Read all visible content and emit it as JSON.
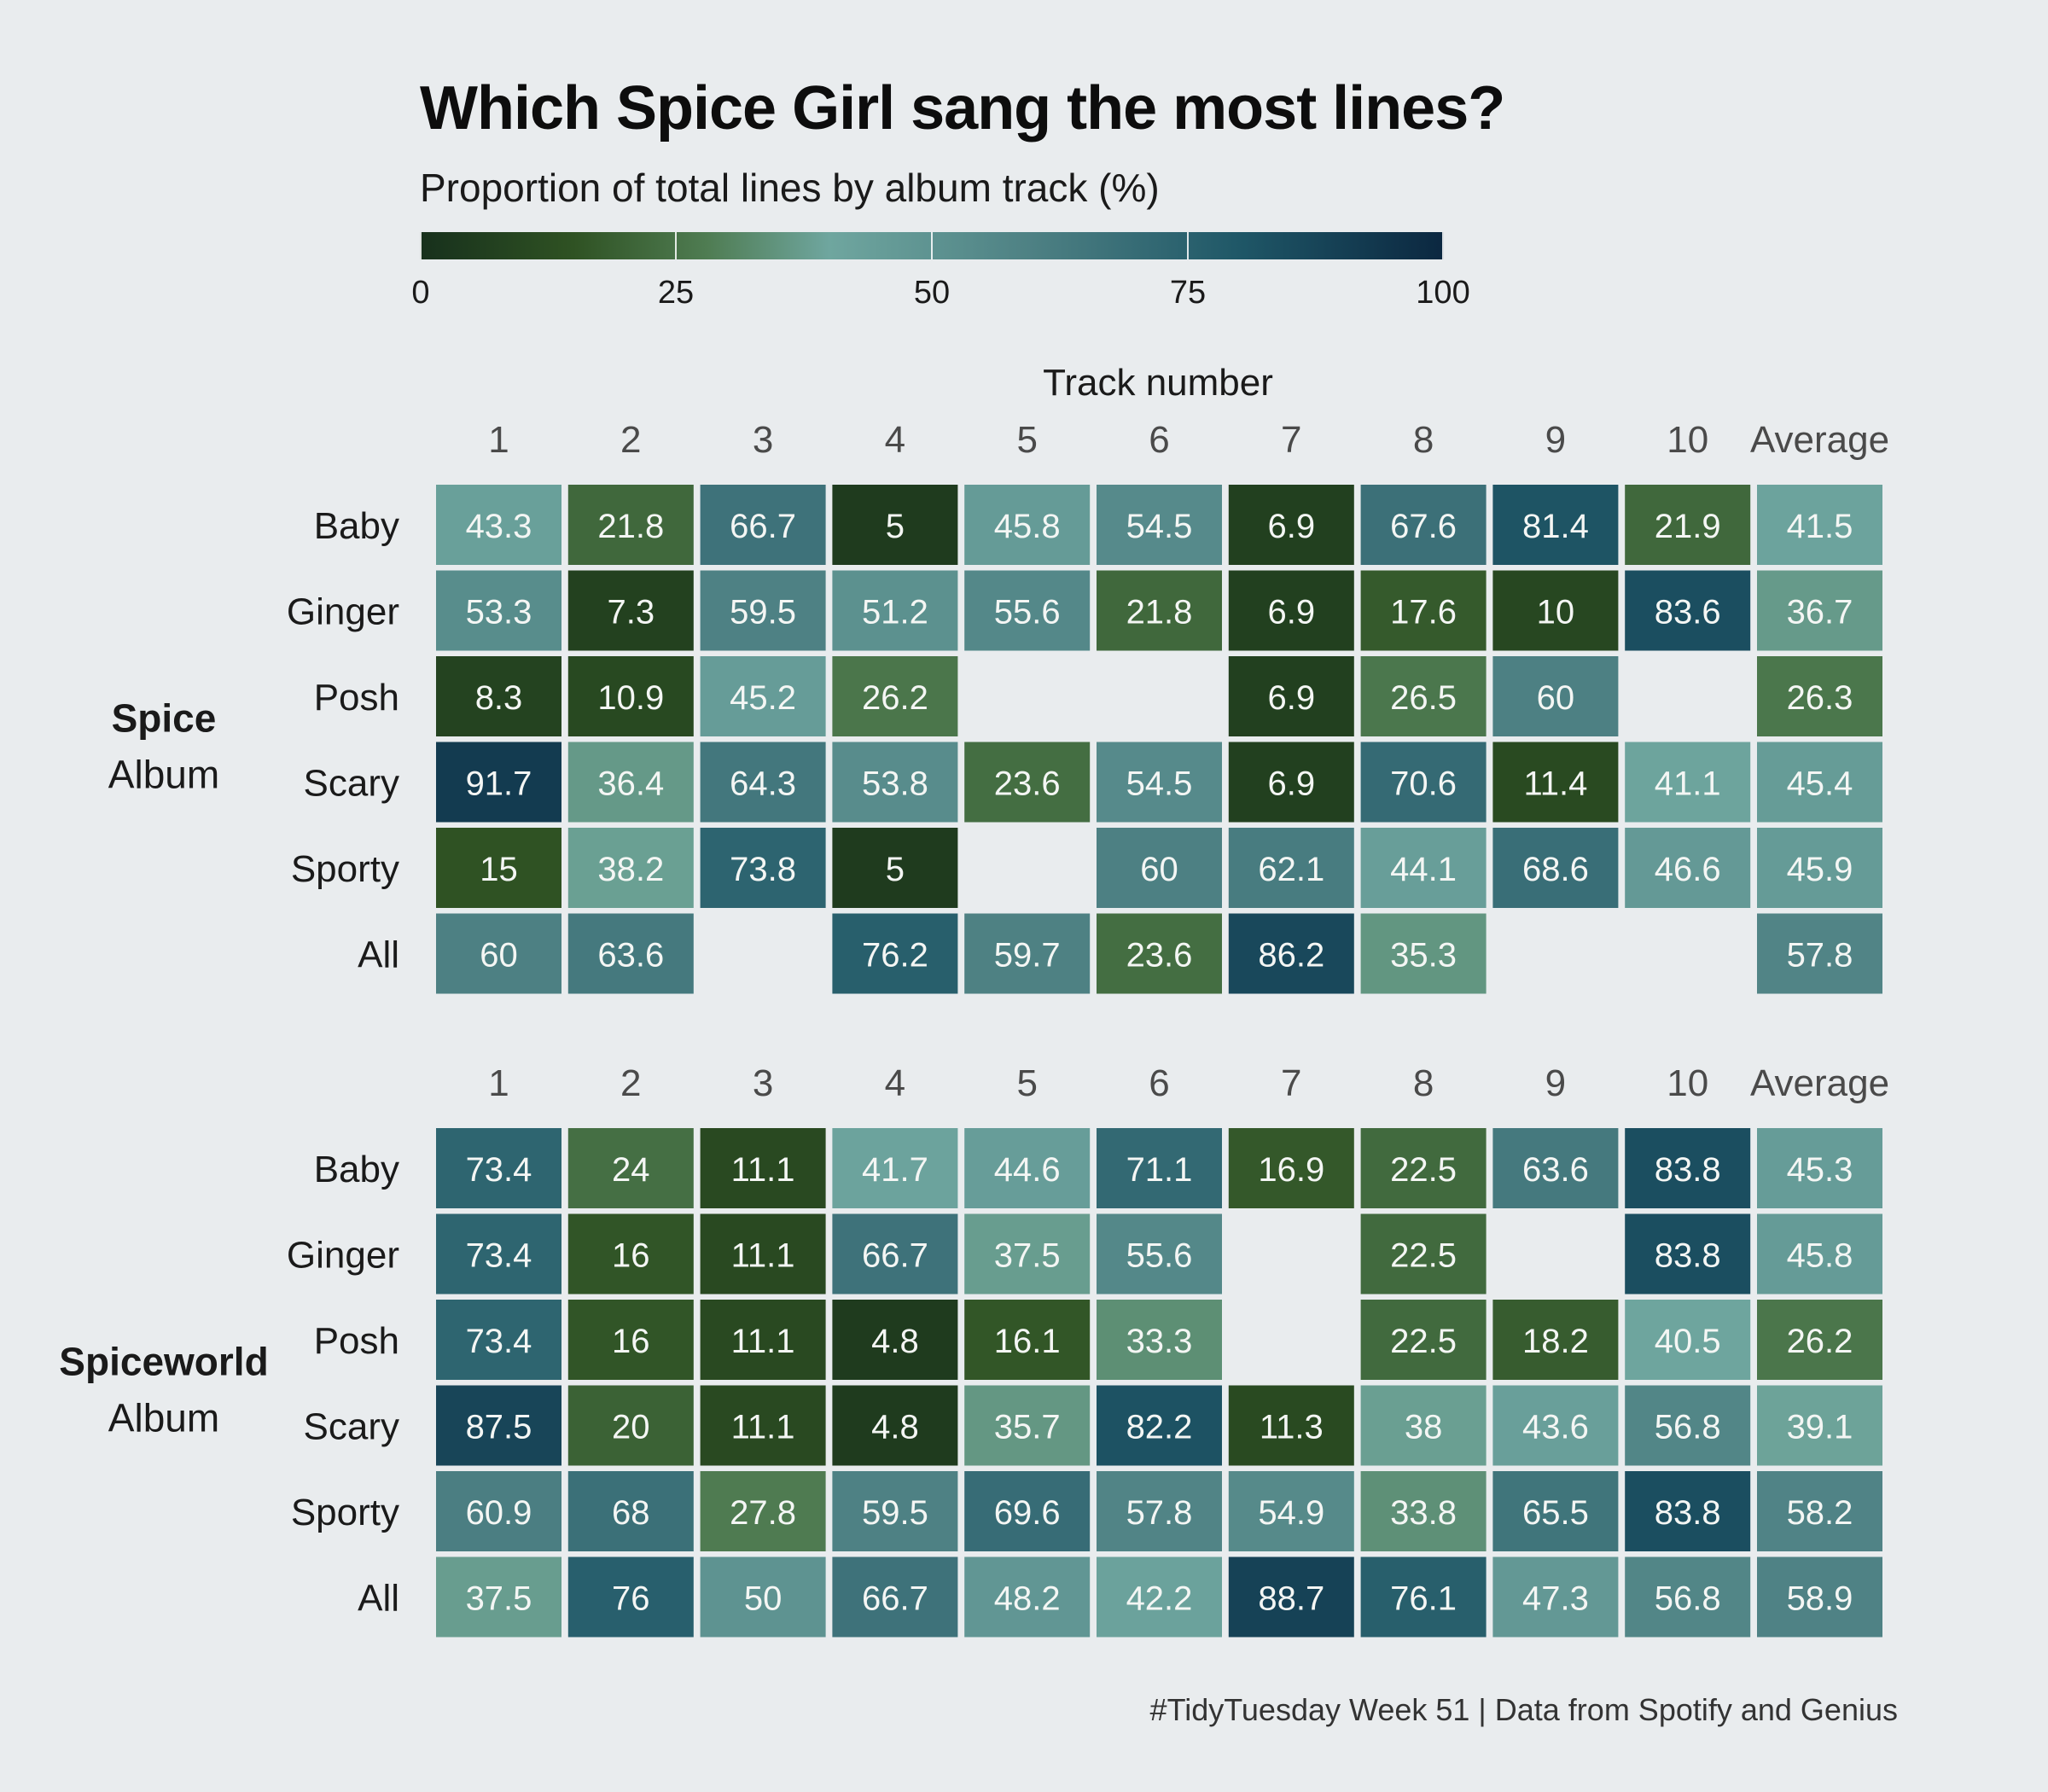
{
  "title": "Which Spice Girl sang the most lines?",
  "subtitle": "Proportion of total lines by album track (%)",
  "caption": "#TidyTuesday Week 51 | Data from Spotify and Genius",
  "colorscale": {
    "ticks": [
      "0",
      "25",
      "50",
      "75",
      "100"
    ],
    "colors": [
      "#17301c",
      "#2f5223",
      "#4f7c52",
      "#6fa69f",
      "#4d8083",
      "#1f5767",
      "#0b2740"
    ]
  },
  "chart_data": {
    "type": "heatmap",
    "title": "Which Spice Girl sang the most lines?",
    "subtitle": "Proportion of total lines by album track (%)",
    "xlabel": "Track number",
    "columns": [
      "1",
      "2",
      "3",
      "4",
      "5",
      "6",
      "7",
      "8",
      "9",
      "10",
      "Average"
    ],
    "value_range": [
      0,
      100
    ],
    "panels": [
      {
        "album": "Spice",
        "album_suffix": "Album",
        "rows": [
          "Baby",
          "Ginger",
          "Posh",
          "Scary",
          "Sporty",
          "All"
        ],
        "values": [
          [
            43.3,
            21.8,
            66.7,
            5,
            45.8,
            54.5,
            6.9,
            67.6,
            81.4,
            21.9,
            41.5
          ],
          [
            53.3,
            7.3,
            59.5,
            51.2,
            55.6,
            21.8,
            6.9,
            17.6,
            10,
            83.6,
            36.7
          ],
          [
            8.3,
            10.9,
            45.2,
            26.2,
            null,
            null,
            6.9,
            26.5,
            60,
            null,
            26.3
          ],
          [
            91.7,
            36.4,
            64.3,
            53.8,
            23.6,
            54.5,
            6.9,
            70.6,
            11.4,
            41.1,
            45.4
          ],
          [
            15,
            38.2,
            73.8,
            5,
            null,
            60,
            62.1,
            44.1,
            68.6,
            46.6,
            45.9
          ],
          [
            60,
            63.6,
            null,
            76.2,
            59.7,
            23.6,
            86.2,
            35.3,
            null,
            null,
            57.8
          ]
        ]
      },
      {
        "album": "Spiceworld",
        "album_suffix": "Album",
        "rows": [
          "Baby",
          "Ginger",
          "Posh",
          "Scary",
          "Sporty",
          "All"
        ],
        "values": [
          [
            73.4,
            24,
            11.1,
            41.7,
            44.6,
            71.1,
            16.9,
            22.5,
            63.6,
            83.8,
            45.3
          ],
          [
            73.4,
            16,
            11.1,
            66.7,
            37.5,
            55.6,
            null,
            22.5,
            null,
            83.8,
            45.8
          ],
          [
            73.4,
            16,
            11.1,
            4.8,
            16.1,
            33.3,
            null,
            22.5,
            18.2,
            40.5,
            26.2
          ],
          [
            87.5,
            20,
            11.1,
            4.8,
            35.7,
            82.2,
            11.3,
            38,
            43.6,
            56.8,
            39.1
          ],
          [
            60.9,
            68,
            27.8,
            59.5,
            69.6,
            57.8,
            54.9,
            33.8,
            65.5,
            83.8,
            58.2
          ],
          [
            37.5,
            76,
            50,
            66.7,
            48.2,
            42.2,
            88.7,
            76.1,
            47.3,
            56.8,
            58.9
          ]
        ]
      }
    ]
  }
}
